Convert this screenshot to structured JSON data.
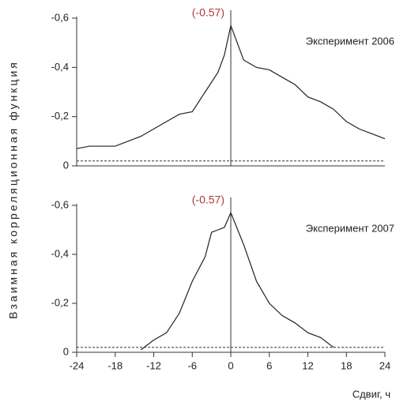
{
  "chart_data": [
    {
      "type": "line",
      "ylabel": "Взаимная корреляционная функция",
      "annotation": "(-0.57)",
      "reference_line": -0.02,
      "xlim": [
        -24,
        24
      ],
      "ylim": [
        0,
        -0.6
      ],
      "yticks": [
        0,
        {
          "value": -0.2,
          "label": "-0,2"
        },
        {
          "value": -0.4,
          "label": "-0,4"
        },
        {
          "value": -0.6,
          "label": "-0,6"
        }
      ],
      "x": [
        -24,
        -22,
        -20,
        -18,
        -16,
        -14,
        -12,
        -10,
        -8,
        -6,
        -4,
        -2,
        -1,
        0,
        2,
        4,
        6,
        8,
        10,
        12,
        14,
        16,
        18,
        20,
        22,
        24
      ],
      "series": [
        {
          "name": "Эксперимент 2006",
          "color": "#222222",
          "values": [
            -0.07,
            -0.08,
            -0.08,
            -0.08,
            -0.1,
            -0.12,
            -0.15,
            -0.18,
            -0.21,
            -0.22,
            -0.3,
            -0.38,
            -0.45,
            -0.57,
            -0.43,
            -0.4,
            -0.39,
            -0.36,
            -0.33,
            -0.28,
            -0.26,
            -0.23,
            -0.18,
            -0.15,
            -0.13,
            -0.11
          ]
        }
      ]
    },
    {
      "type": "line",
      "xlabel": "Сдвиг, ч",
      "annotation": "(-0.57)",
      "reference_line": -0.02,
      "xlim": [
        -24,
        24
      ],
      "ylim": [
        0,
        -0.6
      ],
      "xticks": [
        -24,
        -18,
        -12,
        -6,
        0,
        6,
        12,
        18,
        24
      ],
      "yticks": [
        0,
        {
          "value": -0.2,
          "label": "-0,2"
        },
        {
          "value": -0.4,
          "label": "-0,4"
        },
        {
          "value": -0.6,
          "label": "-0,6"
        }
      ],
      "x": [
        -14,
        -12,
        -10,
        -8,
        -6,
        -4,
        -3,
        -2,
        -1,
        0,
        2,
        4,
        6,
        8,
        10,
        12,
        14,
        16
      ],
      "series": [
        {
          "name": "Эксперимент 2007",
          "color": "#222222",
          "values": [
            -0.01,
            -0.05,
            -0.08,
            -0.16,
            -0.29,
            -0.39,
            -0.49,
            -0.5,
            -0.51,
            -0.57,
            -0.44,
            -0.29,
            -0.2,
            -0.15,
            -0.12,
            -0.08,
            -0.06,
            -0.02
          ]
        }
      ]
    }
  ]
}
